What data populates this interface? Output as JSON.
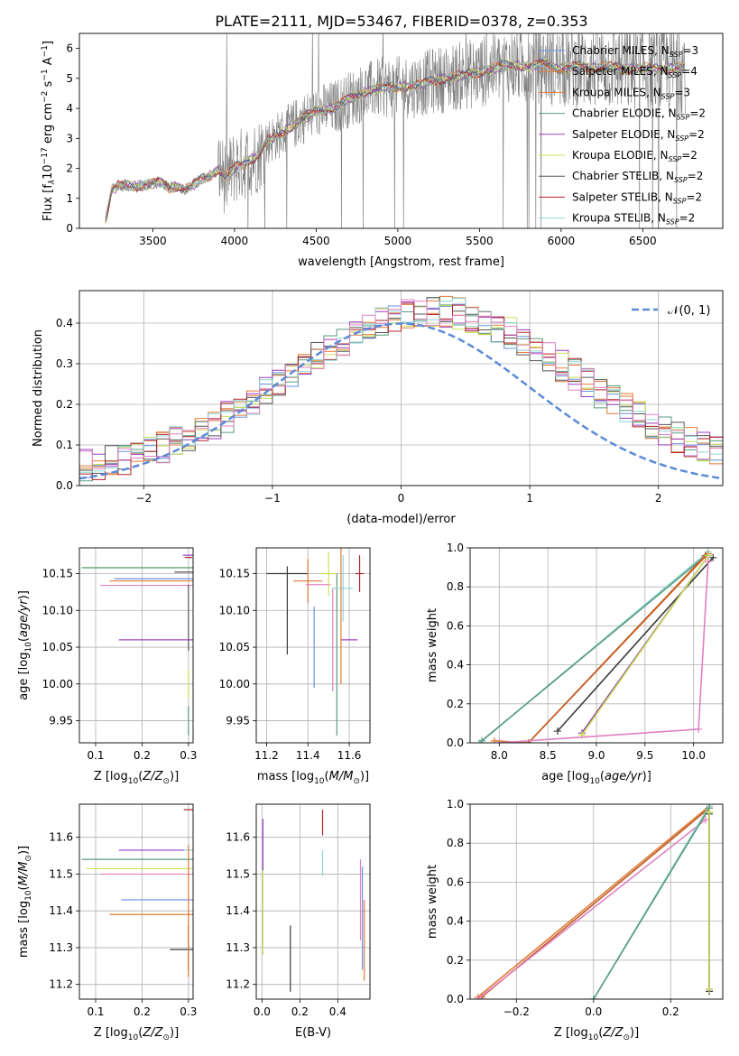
{
  "figure": {
    "title": "PLATE=2111, MJD=53467, FIBERID=0378, z=0.353"
  },
  "colors": {
    "series": [
      "#6a8fe0",
      "#e07b39",
      "#e37b3b",
      "#5a9b7c",
      "#9b3fbf",
      "#c9e05a",
      "#555555",
      "#b0232a",
      "#8fd6d6",
      "#e080c0",
      "#3a3a3a",
      "#8a3aa0",
      "#bf5a20"
    ],
    "normal_curve": "#5b8bd8",
    "spectrum": "#7f7f7f",
    "grid": "#b0b0b0"
  },
  "legend_entries": [
    {
      "label": "Chabrier MILES, N",
      "sub": "SSP",
      "tail": "=3",
      "color": "#6a8fe0"
    },
    {
      "label": "Salpeter MILES, N",
      "sub": "SSP",
      "tail": "=4",
      "color": "#e07b39"
    },
    {
      "label": "Kroupa MILES, N",
      "sub": "SSP",
      "tail": "=3",
      "color": "#e37b3b"
    },
    {
      "label": "Chabrier ELODIE, N",
      "sub": "SSP",
      "tail": "=2",
      "color": "#5a9b7c"
    },
    {
      "label": "Salpeter ELODIE, N",
      "sub": "SSP",
      "tail": "=2",
      "color": "#9b3fbf"
    },
    {
      "label": "Kroupa ELODIE, N",
      "sub": "SSP",
      "tail": "=2",
      "color": "#c9e05a"
    },
    {
      "label": "Chabrier STELIB, N",
      "sub": "SSP",
      "tail": "=2",
      "color": "#555555"
    },
    {
      "label": "Salpeter STELIB, N",
      "sub": "SSP",
      "tail": "=2",
      "color": "#b0232a"
    },
    {
      "label": "Kroupa STELIB, N",
      "sub": "SSP",
      "tail": "=2",
      "color": "#8fd6d6"
    }
  ],
  "chart_data": [
    {
      "id": "spectrum",
      "type": "line",
      "xlabel": "wavelength [Angstrom, rest frame]",
      "ylabel_parts": [
        "Flux [f",
        "λ",
        "10",
        "−17",
        " erg cm",
        "−2",
        " s",
        "−1",
        " A",
        "−1",
        "]"
      ],
      "xlim": [
        3050,
        6990
      ],
      "ylim": [
        0,
        6.5
      ],
      "xticks": [
        3500,
        4000,
        4500,
        5000,
        5500,
        6000,
        6500
      ],
      "yticks": [
        0,
        1,
        2,
        3,
        4,
        5,
        6
      ],
      "grid": false,
      "legend": "top-right",
      "continuum": {
        "x": [
          3200,
          3250,
          3300,
          3400,
          3500,
          3550,
          3600,
          3650,
          3700,
          3750,
          3800,
          3850,
          3900,
          3950,
          4000,
          4050,
          4100,
          4150,
          4200,
          4300,
          4400,
          4500,
          4600,
          4700,
          4800,
          4900,
          5000,
          5100,
          5200,
          5300,
          5400,
          5500,
          5600,
          5700,
          5800,
          5900,
          6000,
          6100,
          6200,
          6300,
          6400,
          6500,
          6600,
          6700,
          6760
        ],
        "y": [
          0.0,
          1.3,
          1.45,
          1.4,
          1.5,
          1.55,
          1.35,
          1.4,
          1.3,
          1.45,
          1.65,
          1.75,
          1.95,
          1.7,
          2.05,
          2.15,
          2.3,
          2.45,
          2.9,
          3.2,
          3.6,
          3.9,
          4.0,
          4.3,
          4.55,
          4.7,
          4.7,
          4.75,
          4.9,
          5.0,
          5.1,
          5.2,
          5.35,
          5.45,
          5.4,
          5.5,
          5.3,
          5.4,
          5.35,
          5.4,
          5.3,
          5.35,
          5.3,
          5.35,
          5.4
        ]
      }
    },
    {
      "id": "residuals",
      "type": "bar",
      "xlabel": "(data-model)/error",
      "ylabel": "Normed distribution",
      "xlim": [
        -2.5,
        2.5
      ],
      "ylim": [
        0,
        0.48
      ],
      "xticks": [
        -2,
        -1,
        0,
        1,
        2
      ],
      "yticks": [
        0.0,
        0.1,
        0.2,
        0.3,
        0.4
      ],
      "grid": true,
      "legend": "top-right",
      "normal_label": "𝒩(0, 1)",
      "bin_edges": [
        -2.5,
        -2.4,
        -2.3,
        -2.2,
        -2.1,
        -2.0,
        -1.9,
        -1.8,
        -1.7,
        -1.6,
        -1.5,
        -1.4,
        -1.3,
        -1.2,
        -1.1,
        -1.0,
        -0.9,
        -0.8,
        -0.7,
        -0.6,
        -0.5,
        -0.4,
        -0.3,
        -0.2,
        -0.1,
        0.0,
        0.1,
        0.2,
        0.3,
        0.4,
        0.5,
        0.6,
        0.7,
        0.8,
        0.9,
        1.0,
        1.1,
        1.2,
        1.3,
        1.4,
        1.5,
        1.6,
        1.7,
        1.8,
        1.9,
        2.0,
        2.1,
        2.2,
        2.3,
        2.4,
        2.5
      ]
    },
    {
      "id": "age_vs_Z",
      "type": "scatter",
      "xlabel_parts": [
        "Z [log",
        "10",
        "(",
        "Z/Z",
        "⊙",
        ")]"
      ],
      "ylabel_parts": [
        "age  [log",
        "10",
        "(",
        "age/yr",
        ")]"
      ],
      "xlim": [
        0.065,
        0.31
      ],
      "ylim": [
        9.92,
        10.185
      ],
      "xticks": [
        0.1,
        0.2,
        0.3
      ],
      "yticks": [
        9.95,
        10.0,
        10.05,
        10.1,
        10.15
      ],
      "grid": true,
      "points": [
        {
          "x": 0.3,
          "y": 10.175,
          "xerr": 0.012,
          "yerr": 0.0,
          "color": "#9b3fbf"
        },
        {
          "x": 0.3,
          "y": 10.172,
          "xerr": 0.008,
          "yerr": 0.0,
          "color": "#b0232a"
        },
        {
          "x": 0.3,
          "y": 10.158,
          "xerr": 0.23,
          "yerr": 0.0,
          "color": "#c9e05a"
        },
        {
          "x": 0.3,
          "y": 10.158,
          "xerr": 0.23,
          "yerr": 0.0,
          "color": "#5a9b7c"
        },
        {
          "x": 0.3,
          "y": 10.152,
          "xerr": 0.03,
          "yerr": 0.0,
          "color": "#555555"
        },
        {
          "x": 0.3,
          "y": 10.143,
          "xerr": 0.16,
          "yerr": 0.0,
          "color": "#6a8fe0"
        },
        {
          "x": 0.3,
          "y": 10.14,
          "xerr": 0.17,
          "yerr": 0.0,
          "color": "#e07b39"
        },
        {
          "x": 0.3,
          "y": 10.134,
          "xerr": 0.19,
          "yerr": 0.0,
          "color": "#e080c0"
        },
        {
          "x": 0.3,
          "y": 10.06,
          "xerr": 0.15,
          "yerr": 0.0,
          "color": "#9b3fbf"
        },
        {
          "x": 0.3,
          "y": 10.09,
          "xerr": 0.0,
          "yerr": 0.045,
          "color": "#555555"
        },
        {
          "x": 0.3,
          "y": 10.0,
          "xerr": 0.0,
          "yerr": 0.02,
          "color": "#c9e05a"
        },
        {
          "x": 0.3,
          "y": 9.95,
          "xerr": 0.0,
          "yerr": 0.02,
          "color": "#5a9b7c"
        }
      ]
    },
    {
      "id": "age_vs_mass",
      "type": "scatter",
      "xlabel_parts": [
        "mass [log",
        "10",
        "(",
        "M/M",
        "⊙",
        ")]"
      ],
      "ylabel": "",
      "xlim": [
        11.15,
        11.7
      ],
      "ylim": [
        9.92,
        10.185
      ],
      "xticks": [
        11.2,
        11.4,
        11.6
      ],
      "yticks": [
        9.95,
        10.0,
        10.05,
        10.1,
        10.15
      ],
      "grid": true,
      "points": [
        {
          "x": 11.3,
          "y": 10.15,
          "xerr": 0.1,
          "yerr": 0.0,
          "color": "#3a3a3a"
        },
        {
          "x": 11.3,
          "y": 10.1,
          "xerr": 0.0,
          "yerr": 0.06,
          "color": "#3a3a3a"
        },
        {
          "x": 11.4,
          "y": 10.14,
          "xerr": 0.07,
          "yerr": 0.03,
          "color": "#e07b39"
        },
        {
          "x": 11.43,
          "y": 10.05,
          "xerr": 0.0,
          "yerr": 0.055,
          "color": "#6a8fe0"
        },
        {
          "x": 11.45,
          "y": 10.135,
          "xerr": 0.06,
          "yerr": 0.0,
          "color": "#e080c0"
        },
        {
          "x": 11.5,
          "y": 10.15,
          "xerr": 0.04,
          "yerr": 0.03,
          "color": "#c9e05a"
        },
        {
          "x": 11.52,
          "y": 10.06,
          "xerr": 0.0,
          "yerr": 0.07,
          "color": "#e080c0"
        },
        {
          "x": 11.54,
          "y": 10.04,
          "xerr": 0.0,
          "yerr": 0.11,
          "color": "#5a9b7c"
        },
        {
          "x": 11.57,
          "y": 10.13,
          "xerr": 0.05,
          "yerr": 0.045,
          "color": "#8fd6d6"
        },
        {
          "x": 11.6,
          "y": 10.06,
          "xerr": 0.04,
          "yerr": 0.0,
          "color": "#9b3fbf"
        },
        {
          "x": 11.65,
          "y": 10.15,
          "xerr": 0.02,
          "yerr": 0.025,
          "color": "#b0232a"
        },
        {
          "x": 11.56,
          "y": 10.1,
          "xerr": 0.0,
          "yerr": 0.1,
          "color": "#e07b39"
        }
      ]
    },
    {
      "id": "massweight_vs_age",
      "type": "line",
      "xlabel_parts": [
        "age  [log",
        "10",
        "(",
        "age/yr",
        ")]"
      ],
      "ylabel": "mass weight",
      "xlim": [
        7.7,
        10.3
      ],
      "ylim": [
        0,
        1.0
      ],
      "xticks": [
        8.0,
        8.5,
        9.0,
        9.5,
        10.0
      ],
      "yticks": [
        0.0,
        0.2,
        0.4,
        0.6,
        0.8,
        1.0
      ],
      "grid": true,
      "series": [
        {
          "color": "#8fd6d6",
          "x": [
            7.8,
            10.15
          ],
          "y": [
            0.0,
            0.98
          ]
        },
        {
          "color": "#5a9b7c",
          "x": [
            7.82,
            10.15
          ],
          "y": [
            0.01,
            0.97
          ]
        },
        {
          "color": "#e07b39",
          "x": [
            7.95,
            8.3,
            10.15
          ],
          "y": [
            0.01,
            0.0,
            0.97
          ]
        },
        {
          "color": "#bf5a20",
          "x": [
            8.3,
            10.12
          ],
          "y": [
            0.0,
            0.96
          ]
        },
        {
          "color": "#3a3a3a",
          "x": [
            8.6,
            10.2
          ],
          "y": [
            0.06,
            0.95
          ]
        },
        {
          "color": "#8a3aa0",
          "x": [
            8.85,
            10.15
          ],
          "y": [
            0.05,
            0.96
          ]
        },
        {
          "color": "#c9e05a",
          "x": [
            8.85,
            10.15
          ],
          "y": [
            0.04,
            0.96
          ]
        },
        {
          "color": "#e080c0",
          "x": [
            8.0,
            10.05,
            10.15
          ],
          "y": [
            0.0,
            0.07,
            0.93
          ]
        }
      ]
    },
    {
      "id": "mass_vs_Z",
      "type": "scatter",
      "xlabel_parts": [
        "Z [log",
        "10",
        "(",
        "Z/Z",
        "⊙",
        ")]"
      ],
      "ylabel_parts": [
        "mass [log",
        "10",
        "(",
        "M/M",
        "⊙",
        ")]"
      ],
      "xlim": [
        0.065,
        0.31
      ],
      "ylim": [
        11.16,
        11.69
      ],
      "xticks": [
        0.1,
        0.2,
        0.3
      ],
      "yticks": [
        11.2,
        11.3,
        11.4,
        11.5,
        11.6
      ],
      "grid": true,
      "points": [
        {
          "x": 0.3,
          "y": 11.675,
          "xerr": 0.01,
          "yerr": 0.0,
          "color": "#b0232a"
        },
        {
          "x": 0.3,
          "y": 11.565,
          "xerr": 0.15,
          "yerr": 0.0,
          "color": "#9b3fbf"
        },
        {
          "x": 0.3,
          "y": 11.565,
          "xerr": 0.01,
          "yerr": 0.0,
          "color": "#8fd6d6"
        },
        {
          "x": 0.3,
          "y": 11.54,
          "xerr": 0.23,
          "yerr": 0.0,
          "color": "#5a9b7c"
        },
        {
          "x": 0.3,
          "y": 11.515,
          "xerr": 0.22,
          "yerr": 0.0,
          "color": "#c9e05a"
        },
        {
          "x": 0.3,
          "y": 11.5,
          "xerr": 0.19,
          "yerr": 0.0,
          "color": "#e080c0"
        },
        {
          "x": 0.3,
          "y": 11.43,
          "xerr": 0.145,
          "yerr": 0.0,
          "color": "#6a8fe0"
        },
        {
          "x": 0.3,
          "y": 11.39,
          "xerr": 0.17,
          "yerr": 0.0,
          "color": "#e07b39"
        },
        {
          "x": 0.3,
          "y": 11.295,
          "xerr": 0.04,
          "yerr": 0.0,
          "color": "#3a3a3a"
        },
        {
          "x": 0.3,
          "y": 11.3,
          "xerr": 0.0,
          "yerr": 0.06,
          "color": "#3a3a3a"
        },
        {
          "x": 0.3,
          "y": 11.4,
          "xerr": 0.0,
          "yerr": 0.18,
          "color": "#e07b39"
        }
      ]
    },
    {
      "id": "mass_vs_EBV",
      "type": "scatter",
      "xlabel": "E(B-V)",
      "ylabel": "",
      "xlim": [
        -0.03,
        0.57
      ],
      "ylim": [
        11.16,
        11.69
      ],
      "xticks": [
        0.0,
        0.2,
        0.4
      ],
      "yticks": [
        11.2,
        11.3,
        11.4,
        11.5,
        11.6
      ],
      "grid": true,
      "points": [
        {
          "x": 0.005,
          "y": 11.58,
          "xerr": 0.0,
          "yerr": 0.07,
          "color": "#9b3fbf"
        },
        {
          "x": 0.005,
          "y": 11.45,
          "xerr": 0.0,
          "yerr": 0.06,
          "color": "#c9e05a"
        },
        {
          "x": 0.005,
          "y": 11.34,
          "xerr": 0.0,
          "yerr": 0.06,
          "color": "#c9e05a"
        },
        {
          "x": 0.15,
          "y": 11.27,
          "xerr": 0.0,
          "yerr": 0.09,
          "color": "#3a3a3a"
        },
        {
          "x": 0.32,
          "y": 11.64,
          "xerr": 0.0,
          "yerr": 0.035,
          "color": "#b0232a"
        },
        {
          "x": 0.32,
          "y": 11.53,
          "xerr": 0.0,
          "yerr": 0.035,
          "color": "#8fd6d6"
        },
        {
          "x": 0.52,
          "y": 11.43,
          "xerr": 0.0,
          "yerr": 0.11,
          "color": "#e080c0"
        },
        {
          "x": 0.53,
          "y": 11.38,
          "xerr": 0.0,
          "yerr": 0.14,
          "color": "#6a8fe0"
        },
        {
          "x": 0.54,
          "y": 11.32,
          "xerr": 0.0,
          "yerr": 0.11,
          "color": "#e07b39"
        }
      ]
    },
    {
      "id": "massweight_vs_Z",
      "type": "line",
      "xlabel_parts": [
        "Z [log",
        "10",
        "(",
        "Z/Z",
        "⊙",
        ")]"
      ],
      "ylabel": "mass weight",
      "xlim": [
        -0.32,
        0.335
      ],
      "ylim": [
        0,
        1.0
      ],
      "xticks": [
        -0.2,
        0.0,
        0.2
      ],
      "yticks": [
        0.0,
        0.2,
        0.4,
        0.6,
        0.8,
        1.0
      ],
      "grid": true,
      "series": [
        {
          "color": "#e07b39",
          "x": [
            -0.3,
            0.3
          ],
          "y": [
            0.01,
            0.99
          ]
        },
        {
          "color": "#bf5a20",
          "x": [
            -0.29,
            0.3
          ],
          "y": [
            0.01,
            0.98
          ]
        },
        {
          "color": "#e080c0",
          "x": [
            -0.3,
            0.29
          ],
          "y": [
            0.0,
            0.92
          ]
        },
        {
          "color": "#8fd6d6",
          "x": [
            0.0,
            0.3
          ],
          "y": [
            0.0,
            0.99
          ]
        },
        {
          "color": "#5a9b7c",
          "x": [
            0.0,
            0.3
          ],
          "y": [
            0.0,
            0.98
          ]
        },
        {
          "color": "#3a3a3a",
          "x": [
            0.3,
            0.3
          ],
          "y": [
            0.04,
            0.95
          ]
        },
        {
          "color": "#8a3aa0",
          "x": [
            0.3,
            0.3
          ],
          "y": [
            0.05,
            0.96
          ]
        },
        {
          "color": "#c9e05a",
          "x": [
            0.3,
            0.3
          ],
          "y": [
            0.05,
            0.96
          ]
        }
      ]
    }
  ]
}
